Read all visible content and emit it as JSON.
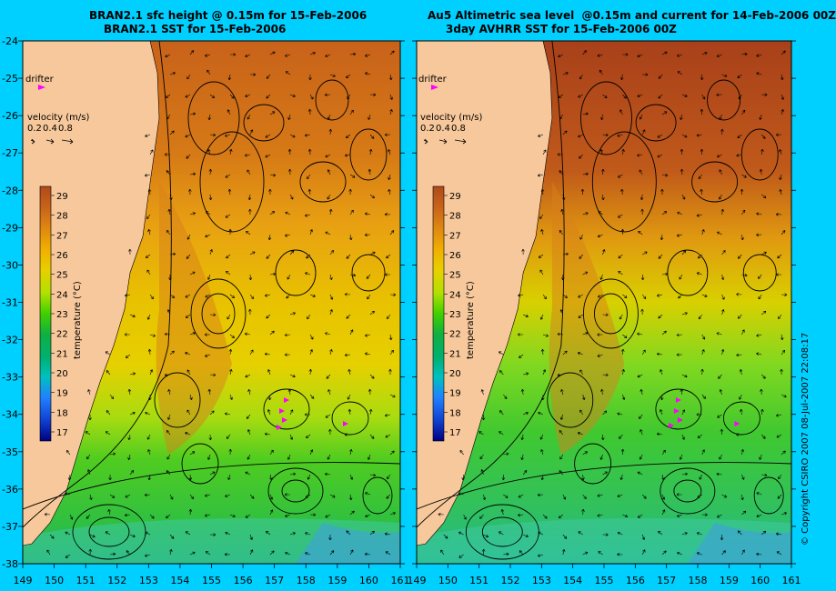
{
  "panels": [
    {
      "id": "left",
      "title_line1": "BRAN2.1 sfc height @ 0.15m for 15-Feb-2006",
      "title_line2": "BRAN2.1 SST for 15-Feb-2006",
      "drifter_label": "drifter",
      "velocity_label": "velocity (m/s)",
      "velocity_scale": [
        "0.2",
        "0.4",
        "0.8"
      ],
      "colorbar_label": "temperature (°C)",
      "colorbar_ticks": [
        "29",
        "28",
        "27",
        "26",
        "25",
        "24",
        "23",
        "22",
        "21",
        "20",
        "19",
        "18",
        "17"
      ]
    },
    {
      "id": "right",
      "title_line1": "Au5 Altimetric sea level  @0.15m and current for 14-Feb-2006 00Z",
      "title_line2": "3day AVHRR SST for 15-Feb-2006 00Z",
      "drifter_label": "drifter",
      "velocity_label": "velocity (m/s)",
      "velocity_scale": [
        "0.2",
        "0.4",
        "0.8"
      ],
      "colorbar_label": "temperature (°C)",
      "colorbar_ticks": [
        "29",
        "28",
        "27",
        "26",
        "25",
        "24",
        "23",
        "22",
        "21",
        "20",
        "19",
        "18",
        "17"
      ]
    }
  ],
  "axes": {
    "lat_ticks": [
      "-24",
      "-25",
      "-26",
      "-27",
      "-28",
      "-29",
      "-30",
      "-31",
      "-32",
      "-33",
      "-34",
      "-35",
      "-36",
      "-37",
      "-38"
    ],
    "lon_ticks_left": [
      "149",
      "150",
      "151",
      "152",
      "153",
      "154",
      "155",
      "156",
      "157",
      "158",
      "159",
      "160",
      "161"
    ],
    "lon_ticks_right": [
      "149",
      "150",
      "151",
      "152",
      "153",
      "154",
      "155",
      "156",
      "157",
      "158",
      "159",
      "160",
      "161"
    ]
  },
  "copyright": "© Copyright CSIRO 2007  08-Jul-2007 22:08:17",
  "colors": {
    "background": "#00d0ff",
    "land": "#f7c89b",
    "drifter": "#ff00ff",
    "colorbar": [
      "#b04a1a",
      "#c8621a",
      "#e08a10",
      "#f0b000",
      "#e8d000",
      "#b0e000",
      "#40d000",
      "#10b040",
      "#00b070",
      "#00c0c0",
      "#2080ff",
      "#1040d0",
      "#000080"
    ]
  }
}
